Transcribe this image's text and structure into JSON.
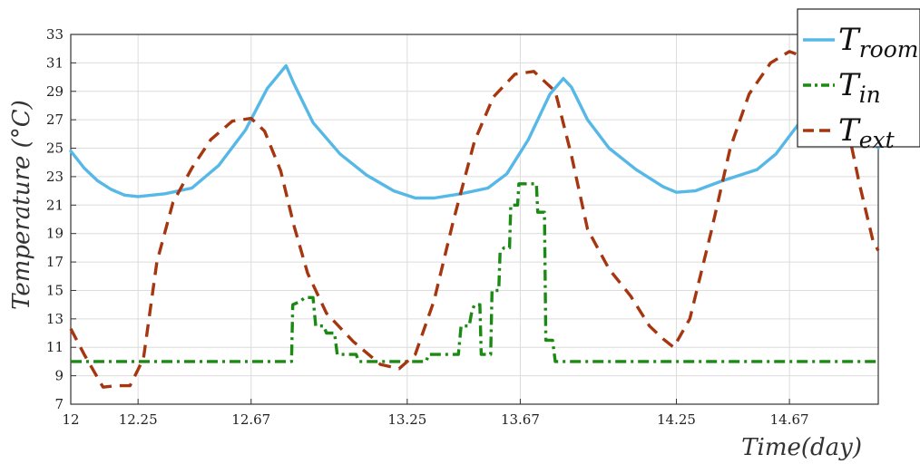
{
  "chart_data": {
    "type": "line",
    "xlabel": "Time(day)",
    "ylabel": "Temperature (°C)",
    "xlim": [
      12,
      15.0
    ],
    "ylim": [
      7,
      33
    ],
    "x_ticks": [
      {
        "value": 12,
        "label": "12"
      },
      {
        "value": 12.25,
        "label": "12.25"
      },
      {
        "value": 12.67,
        "label": "12.67"
      },
      {
        "value": 13.25,
        "label": "13.25"
      },
      {
        "value": 13.67,
        "label": "13.67"
      },
      {
        "value": 14.25,
        "label": "14.25"
      },
      {
        "value": 14.67,
        "label": "14.67"
      }
    ],
    "y_ticks": [
      7,
      9,
      11,
      13,
      15,
      17,
      19,
      21,
      23,
      25,
      27,
      29,
      31,
      33
    ],
    "grid": true,
    "legend_position": "top-right",
    "series": [
      {
        "name": "T_room",
        "legend_main": "T",
        "legend_sub": "room",
        "color": "#56b8e6",
        "style": "solid",
        "points": [
          [
            12.0,
            24.8
          ],
          [
            12.05,
            23.6
          ],
          [
            12.1,
            22.7
          ],
          [
            12.15,
            22.1
          ],
          [
            12.2,
            21.7
          ],
          [
            12.25,
            21.6
          ],
          [
            12.35,
            21.8
          ],
          [
            12.45,
            22.2
          ],
          [
            12.55,
            23.8
          ],
          [
            12.65,
            26.3
          ],
          [
            12.73,
            29.2
          ],
          [
            12.8,
            30.8
          ],
          [
            12.83,
            29.5
          ],
          [
            12.9,
            26.8
          ],
          [
            13.0,
            24.6
          ],
          [
            13.1,
            23.1
          ],
          [
            13.2,
            22.0
          ],
          [
            13.28,
            21.5
          ],
          [
            13.35,
            21.5
          ],
          [
            13.45,
            21.8
          ],
          [
            13.55,
            22.2
          ],
          [
            13.62,
            23.2
          ],
          [
            13.7,
            25.6
          ],
          [
            13.78,
            28.8
          ],
          [
            13.83,
            29.9
          ],
          [
            13.86,
            29.3
          ],
          [
            13.92,
            27.0
          ],
          [
            14.0,
            25.0
          ],
          [
            14.1,
            23.5
          ],
          [
            14.2,
            22.3
          ],
          [
            14.25,
            21.9
          ],
          [
            14.32,
            22.0
          ],
          [
            14.42,
            22.7
          ],
          [
            14.55,
            23.5
          ],
          [
            14.62,
            24.6
          ],
          [
            14.7,
            26.6
          ],
          [
            14.76,
            27.6
          ],
          [
            14.85,
            27.7
          ],
          [
            14.95,
            26.2
          ],
          [
            15.0,
            25.0
          ]
        ]
      },
      {
        "name": "T_in",
        "legend_main": "T",
        "legend_sub": "in",
        "color": "#1a8a12",
        "style": "dashdot",
        "points": [
          [
            12.0,
            10.0
          ],
          [
            12.82,
            10.0
          ],
          [
            12.825,
            14.0
          ],
          [
            12.85,
            14.2
          ],
          [
            12.87,
            14.5
          ],
          [
            12.9,
            14.5
          ],
          [
            12.91,
            12.5
          ],
          [
            12.94,
            12.5
          ],
          [
            12.95,
            12.0
          ],
          [
            12.98,
            12.0
          ],
          [
            12.99,
            10.5
          ],
          [
            13.06,
            10.5
          ],
          [
            13.07,
            10.0
          ],
          [
            13.32,
            10.0
          ],
          [
            13.33,
            10.5
          ],
          [
            13.44,
            10.5
          ],
          [
            13.45,
            12.5
          ],
          [
            13.48,
            12.5
          ],
          [
            13.49,
            13.5
          ],
          [
            13.5,
            14.0
          ],
          [
            13.52,
            14.0
          ],
          [
            13.525,
            10.5
          ],
          [
            13.56,
            10.5
          ],
          [
            13.565,
            15.0
          ],
          [
            13.59,
            15.0
          ],
          [
            13.595,
            17.7
          ],
          [
            13.61,
            18.0
          ],
          [
            13.63,
            18.0
          ],
          [
            13.635,
            21.0
          ],
          [
            13.66,
            21.0
          ],
          [
            13.665,
            22.5
          ],
          [
            13.73,
            22.5
          ],
          [
            13.735,
            20.5
          ],
          [
            13.76,
            20.5
          ],
          [
            13.765,
            11.5
          ],
          [
            13.79,
            11.5
          ],
          [
            13.8,
            10.0
          ],
          [
            15.0,
            10.0
          ]
        ]
      },
      {
        "name": "T_ext",
        "legend_main": "T",
        "legend_sub": "ext",
        "color": "#a6360f",
        "style": "dashed",
        "points": [
          [
            12.0,
            12.3
          ],
          [
            12.05,
            10.5
          ],
          [
            12.12,
            8.2
          ],
          [
            12.17,
            8.3
          ],
          [
            12.22,
            8.3
          ],
          [
            12.27,
            10.2
          ],
          [
            12.32,
            17.0
          ],
          [
            12.38,
            21.2
          ],
          [
            12.45,
            23.6
          ],
          [
            12.52,
            25.6
          ],
          [
            12.6,
            26.9
          ],
          [
            12.67,
            27.1
          ],
          [
            12.72,
            26.2
          ],
          [
            12.78,
            23.4
          ],
          [
            12.83,
            19.5
          ],
          [
            12.88,
            16.2
          ],
          [
            12.95,
            13.4
          ],
          [
            13.05,
            11.4
          ],
          [
            13.15,
            9.8
          ],
          [
            13.22,
            9.5
          ],
          [
            13.28,
            10.5
          ],
          [
            13.35,
            14.3
          ],
          [
            13.42,
            19.8
          ],
          [
            13.5,
            25.5
          ],
          [
            13.57,
            28.6
          ],
          [
            13.65,
            30.2
          ],
          [
            13.72,
            30.4
          ],
          [
            13.8,
            29.0
          ],
          [
            13.86,
            24.5
          ],
          [
            13.92,
            19.3
          ],
          [
            14.0,
            16.5
          ],
          [
            14.08,
            14.6
          ],
          [
            14.15,
            12.5
          ],
          [
            14.2,
            11.6
          ],
          [
            14.24,
            11.0
          ],
          [
            14.3,
            13.0
          ],
          [
            14.38,
            19.2
          ],
          [
            14.45,
            25.0
          ],
          [
            14.52,
            28.8
          ],
          [
            14.6,
            31.0
          ],
          [
            14.67,
            31.8
          ],
          [
            14.74,
            31.3
          ],
          [
            14.82,
            29.3
          ],
          [
            14.88,
            27.0
          ],
          [
            14.93,
            22.5
          ],
          [
            14.98,
            18.5
          ],
          [
            15.0,
            17.8
          ]
        ]
      }
    ]
  }
}
